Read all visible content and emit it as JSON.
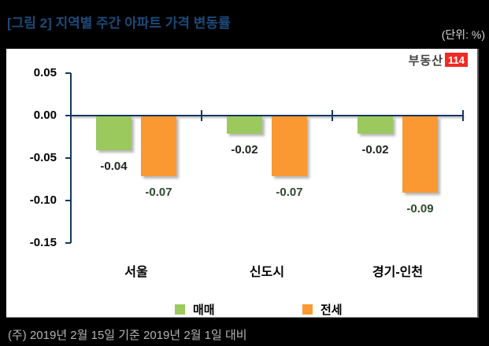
{
  "header": {
    "title": "[그림 2] 지역별 주간 아파트 가격 변동률",
    "unit_label": "(단위: %)"
  },
  "logo": {
    "text": "부동산",
    "badge": "114"
  },
  "footer": {
    "note": "(주) 2019년 2월 15일 기준 2019년 2월 1일 대비"
  },
  "colors": {
    "title_blue": "#1B4A7A",
    "axis_navy": "#17375E",
    "maemae_green": "#9BC95E",
    "jeonse_orange": "#FA9832",
    "logo_red": "#EE2B24",
    "footer_gray": "#B5B5B5"
  },
  "chart_data": {
    "type": "bar",
    "title": "[그림 2] 지역별 주간 아파트 가격 변동률",
    "unit": "%",
    "categories": [
      "서울",
      "신도시",
      "경기-인천"
    ],
    "series": [
      {
        "name": "매매",
        "color": "#9BC95E",
        "label_color": "#20261F",
        "values": [
          -0.04,
          -0.02,
          -0.02
        ]
      },
      {
        "name": "전세",
        "color": "#FA9832",
        "label_color": "#2E4A2E",
        "values": [
          -0.07,
          -0.07,
          -0.09
        ]
      }
    ],
    "y_ticks": [
      0.05,
      0.0,
      -0.05,
      -0.1,
      -0.15
    ],
    "y_tick_labels": [
      "0.05",
      "0.00",
      "-0.05",
      "-0.10",
      "-0.15"
    ],
    "ylim": [
      -0.15,
      0.05
    ],
    "grid": false,
    "data_labels": true,
    "legend_position": "bottom"
  }
}
